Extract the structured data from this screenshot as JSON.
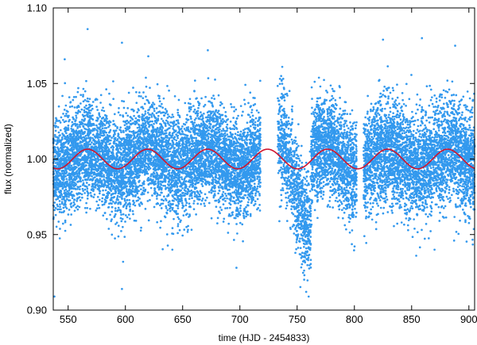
{
  "chart_data": {
    "type": "scatter",
    "title": "",
    "xlabel": "time (HJD - 2454833)",
    "ylabel": "flux (normalized)",
    "xlim": [
      537,
      905
    ],
    "ylim": [
      0.9,
      1.1
    ],
    "xticks": [
      550,
      600,
      650,
      700,
      750,
      800,
      850,
      900
    ],
    "yticks": [
      0.9,
      0.95,
      1.0,
      1.05,
      1.1
    ],
    "xtick_labels": [
      "550",
      "600",
      "650",
      "700",
      "750",
      "800",
      "850",
      "900"
    ],
    "ytick_labels": [
      "0.90",
      "0.95",
      "1.00",
      "1.05",
      "1.10"
    ],
    "grid": false,
    "legend": "none",
    "series": [
      {
        "kind": "scatter",
        "color": "#3399ee",
        "segments": [
          {
            "x_start": 537,
            "x_end": 718,
            "density_per_day": 70,
            "sigma": 0.016
          },
          {
            "x_start": 733,
            "x_end": 762,
            "density_per_day": 55,
            "sigma": 0.019
          },
          {
            "x_start": 762,
            "x_end": 802,
            "density_per_day": 70,
            "sigma": 0.016
          },
          {
            "x_start": 808,
            "x_end": 905,
            "density_per_day": 70,
            "sigma": 0.017
          }
        ],
        "outliers": [
          {
            "x": 538,
            "y": 0.909
          },
          {
            "x": 567,
            "y": 1.086
          },
          {
            "x": 597,
            "y": 1.077
          },
          {
            "x": 597,
            "y": 0.914
          },
          {
            "x": 598,
            "y": 0.932
          },
          {
            "x": 672,
            "y": 1.072
          },
          {
            "x": 697,
            "y": 0.928
          },
          {
            "x": 737,
            "y": 1.061
          },
          {
            "x": 825,
            "y": 1.079
          },
          {
            "x": 859,
            "y": 1.08
          },
          {
            "x": 888,
            "y": 1.075
          },
          {
            "x": 854,
            "y": 0.936
          },
          {
            "x": 870,
            "y": 0.94
          },
          {
            "x": 547,
            "y": 1.066
          },
          {
            "x": 620,
            "y": 1.068
          },
          {
            "x": 641,
            "y": 0.94
          }
        ]
      },
      {
        "kind": "line",
        "color": "#d0142c",
        "model": {
          "mean": 1.0,
          "amplitude": 0.0065,
          "period_days": 52.4,
          "peak_x": 567
        },
        "x_start": 537,
        "x_end": 905
      }
    ]
  }
}
